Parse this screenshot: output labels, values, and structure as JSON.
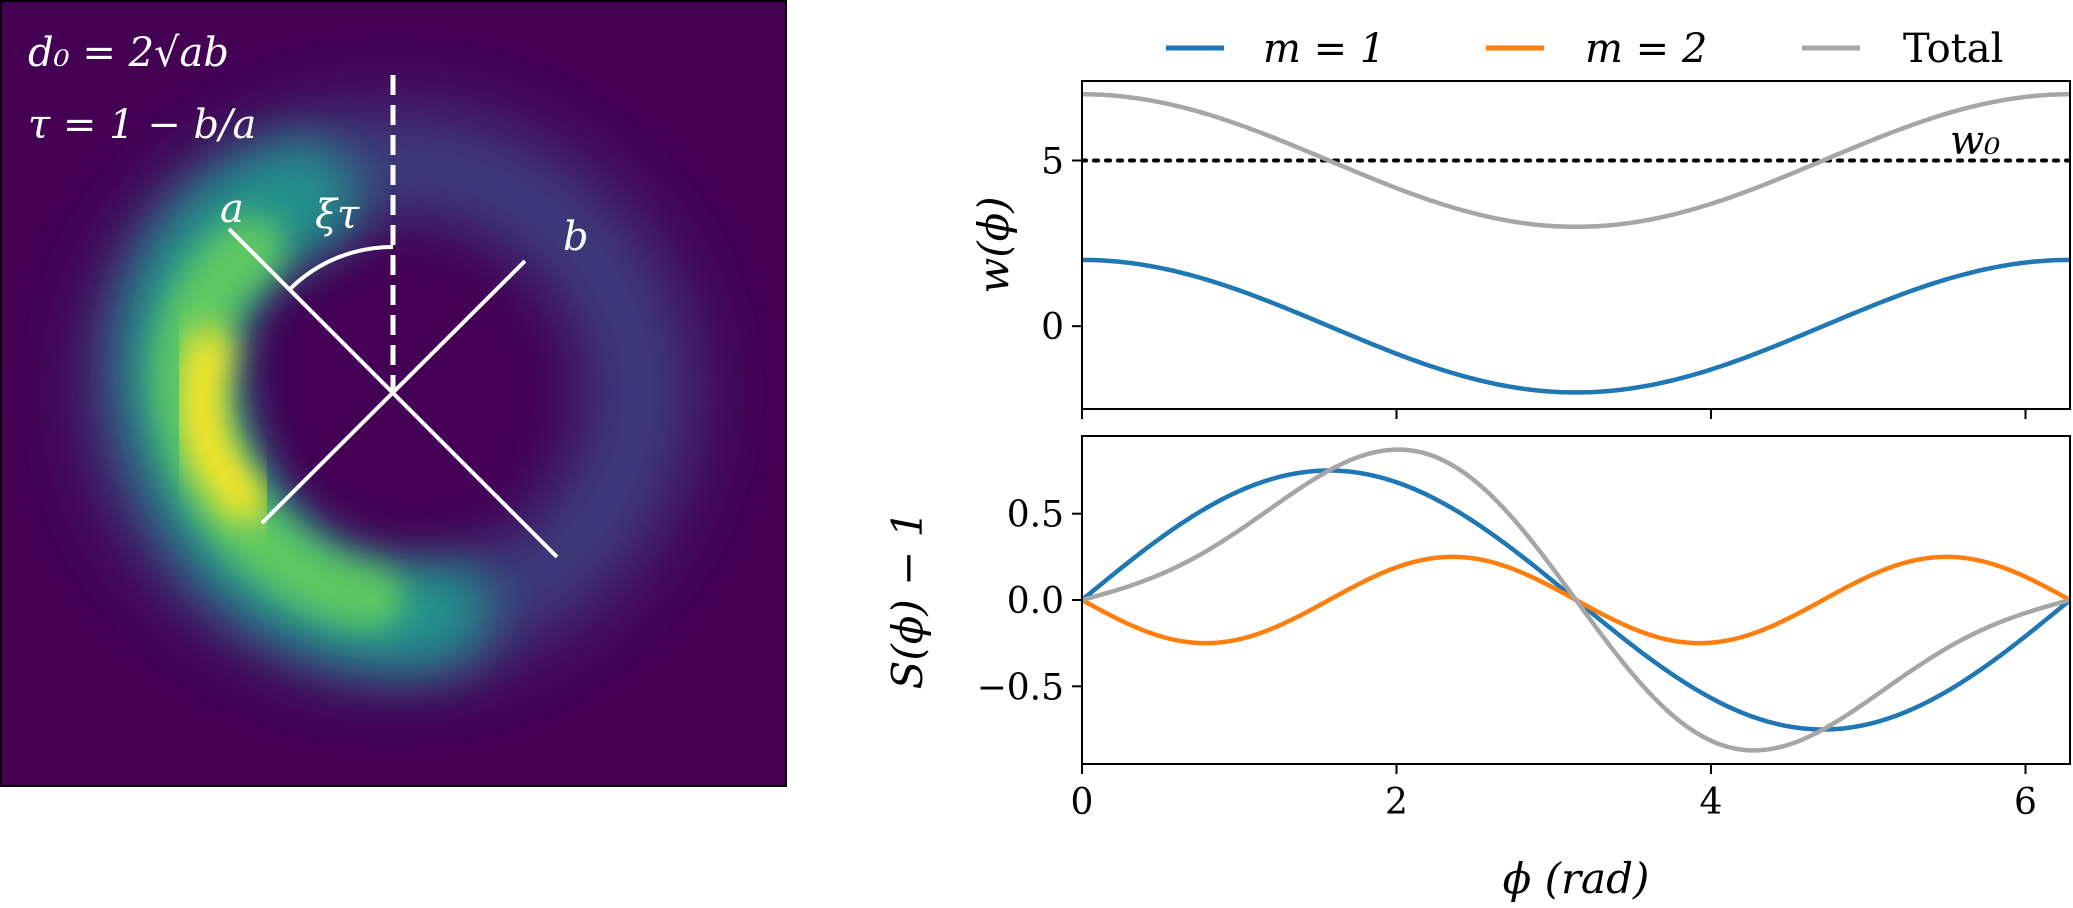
{
  "colors": {
    "m1": "#1f77b4",
    "m2": "#ff7f0e",
    "total": "#a6a6a6",
    "w0": "#000000"
  },
  "image_panel": {
    "annotation_d0": "d₀ = 2√ab",
    "annotation_tau": "τ = 1 − b/a",
    "axis_a_label": "a",
    "axis_b_label": "b",
    "angle_label": "ξτ"
  },
  "chart_data": [
    {
      "type": "line",
      "ylabel": "w(ϕ)",
      "xlim": [
        0,
        6.283
      ],
      "ylim": [
        -2.5,
        7.4
      ],
      "yticks": [
        "0",
        "5"
      ],
      "x_fn": "phi",
      "series": [
        {
          "name": "m = 1",
          "color_key": "m1",
          "formula": "2*cos(phi)",
          "x": [
            0,
            0.785,
            1.571,
            2.356,
            3.142,
            3.927,
            4.712,
            5.498,
            6.283
          ],
          "values": [
            2,
            1.41,
            0,
            -1.41,
            -2,
            -1.41,
            0,
            1.41,
            2
          ]
        },
        {
          "name": "Total",
          "color_key": "total",
          "formula": "5+2*cos(phi)",
          "x": [
            0,
            0.785,
            1.571,
            2.356,
            3.142,
            3.927,
            4.712,
            5.498,
            6.283
          ],
          "values": [
            7,
            6.41,
            5,
            3.59,
            3,
            3.59,
            5,
            6.41,
            7
          ]
        }
      ],
      "hline": {
        "y": 5,
        "label": "w₀",
        "style": "dotted"
      }
    },
    {
      "type": "line",
      "ylabel": "S(ϕ) − 1",
      "xlabel": "ϕ (rad)",
      "xlim": [
        0,
        6.283
      ],
      "ylim": [
        -0.95,
        0.95
      ],
      "yticks": [
        "0.5",
        "0.0",
        "−0.5"
      ],
      "xticks": [
        "0",
        "2",
        "4",
        "6"
      ],
      "series": [
        {
          "name": "m = 1",
          "color_key": "m1",
          "formula": "0.75*sin(phi)",
          "x": [
            0,
            0.785,
            1.571,
            2.356,
            3.142,
            3.927,
            4.712,
            5.498,
            6.283
          ],
          "values": [
            0,
            0.53,
            0.75,
            0.53,
            0,
            -0.53,
            -0.75,
            -0.53,
            0
          ]
        },
        {
          "name": "m = 2",
          "color_key": "m2",
          "formula": "-0.25*sin(2*phi)",
          "x": [
            0,
            0.785,
            1.571,
            2.356,
            3.142,
            3.927,
            4.712,
            5.498,
            6.283
          ],
          "values": [
            0,
            -0.25,
            0,
            0.25,
            0,
            -0.25,
            0,
            0.25,
            0
          ]
        },
        {
          "name": "Total",
          "color_key": "total",
          "formula": "0.75*sin(phi)-0.25*sin(2*phi)",
          "x": [
            0,
            0.785,
            1.571,
            2.356,
            3.142,
            3.927,
            4.712,
            5.498,
            6.283
          ],
          "values": [
            0,
            0.28,
            0.75,
            0.78,
            0,
            -0.28,
            -0.75,
            -0.78,
            0
          ]
        }
      ]
    }
  ],
  "legend": {
    "items": [
      {
        "label": "m = 1",
        "color_key": "m1"
      },
      {
        "label": "m = 2",
        "color_key": "m2"
      },
      {
        "label": "Total",
        "color_key": "total"
      }
    ],
    "placement": "top"
  }
}
